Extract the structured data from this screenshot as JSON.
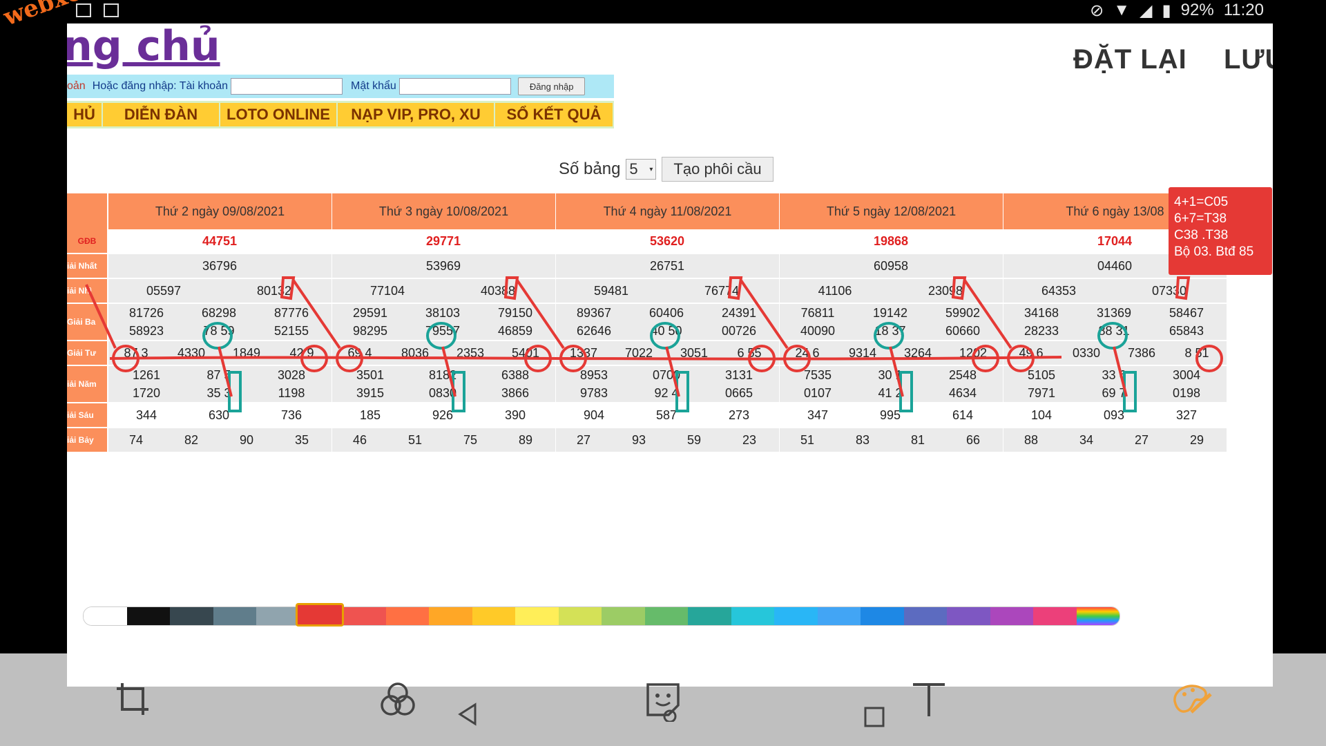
{
  "status": {
    "battery": "92%",
    "time": "11:20"
  },
  "watermark": "webxoso.net",
  "site_title": "ng chủ",
  "actions": {
    "reset": "ĐẶT LẠI",
    "save": "LƯU"
  },
  "login": {
    "prefix": "oản",
    "label1": "Hoặc đăng nhập: Tài khoản",
    "label2": "Mật khẩu",
    "button": "Đăng nhập"
  },
  "menu": [
    "HỦ",
    "DIỄN ĐÀN",
    "LOTO ONLINE",
    "NẠP VIP, PRO, XU",
    "SỔ KẾT QUẢ"
  ],
  "controls": {
    "label": "Số bảng",
    "value": "5",
    "button": "Tạo phôi cầu"
  },
  "row_labels": [
    "GĐB",
    "iải Nhất",
    "iải Nhì",
    "Giải Ba",
    "Giải Tư",
    "iải Năm",
    "iải Sáu",
    "iải Bảy"
  ],
  "days": [
    {
      "header": "Thứ 2 ngày 09/08/2021",
      "gdb": "44751",
      "nhat": "36796",
      "nhi": [
        "05597",
        "80132"
      ],
      "ba": [
        "81726",
        "68298",
        "87776",
        "58923",
        "78 59",
        "52155"
      ],
      "tu": [
        "87 3",
        "4330",
        "1849",
        "42 9"
      ],
      "nam": [
        "1261",
        "87 5",
        "3028",
        "1720",
        "35 3",
        "1198"
      ],
      "sau": [
        "344",
        "630",
        "736"
      ],
      "bay": [
        "74",
        "82",
        "90",
        "35"
      ]
    },
    {
      "header": "Thứ 3 ngày 10/08/2021",
      "gdb": "29771",
      "nhat": "53969",
      "nhi": [
        "77104",
        "40388"
      ],
      "ba": [
        "29591",
        "38103",
        "79150",
        "98295",
        "79557",
        "46859"
      ],
      "tu": [
        "69 4",
        "8036",
        "2353",
        "5401"
      ],
      "nam": [
        "3501",
        "8182",
        "6388",
        "3915",
        "0830",
        "3866"
      ],
      "sau": [
        "185",
        "926",
        "390"
      ],
      "bay": [
        "46",
        "51",
        "75",
        "89"
      ]
    },
    {
      "header": "Thứ 4 ngày 11/08/2021",
      "gdb": "53620",
      "nhat": "26751",
      "nhi": [
        "59481",
        "76774"
      ],
      "ba": [
        "89367",
        "60406",
        "24391",
        "62646",
        "40 50",
        "00726"
      ],
      "tu": [
        "1337",
        "7022",
        "3051",
        "6 55"
      ],
      "nam": [
        "8953",
        "0700",
        "3131",
        "9783",
        "92 4",
        "0665"
      ],
      "sau": [
        "904",
        "587",
        "273"
      ],
      "bay": [
        "27",
        "93",
        "59",
        "23"
      ]
    },
    {
      "header": "Thứ 5 ngày 12/08/2021",
      "gdb": "19868",
      "nhat": "60958",
      "nhi": [
        "41106",
        "23098"
      ],
      "ba": [
        "76811",
        "19142",
        "59902",
        "40090",
        "18 37",
        "60660"
      ],
      "tu": [
        "24 6",
        "9314",
        "3264",
        "1202"
      ],
      "nam": [
        "7535",
        "30 1",
        "2548",
        "0107",
        "41 2",
        "4634"
      ],
      "sau": [
        "347",
        "995",
        "614"
      ],
      "bay": [
        "51",
        "83",
        "81",
        "66"
      ]
    },
    {
      "header": "Thứ 6 ngày 13/08",
      "gdb": "17044",
      "nhat": "04460",
      "nhi": [
        "64353",
        "07330"
      ],
      "ba": [
        "34168",
        "31369",
        "58467",
        "28233",
        "88 31",
        "65843"
      ],
      "tu": [
        "49 6",
        "0330",
        "7386",
        "8 51"
      ],
      "nam": [
        "5105",
        "33 6",
        "3004",
        "7971",
        "69 7",
        "0198"
      ],
      "sau": [
        "104",
        "093",
        "327"
      ],
      "bay": [
        "88",
        "34",
        "27",
        "29"
      ]
    }
  ],
  "note": [
    "4+1=C05",
    "6+7=T38",
    "C38 .T38",
    "Bộ 03. Btđ 85"
  ],
  "colors": {
    "annotation_red": "#e53935",
    "annotation_teal": "#1aa398",
    "header_orange": "#fb8f5b",
    "menu_yellow": "#ffcc33"
  }
}
